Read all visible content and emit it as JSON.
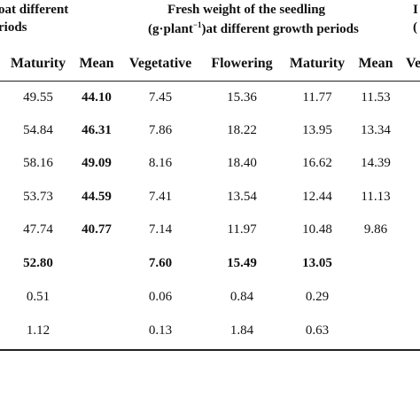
{
  "headers": {
    "group1_line1": "oat different",
    "group1_line2": "riods",
    "group2_line1": "Fresh weight of the seedling",
    "group2_line2_pre": "(g·plant",
    "group2_line2_sup": "−1",
    "group2_line2_post": ")at different growth periods",
    "group3_line1": "I",
    "group3_line2": "(",
    "columns": [
      "Maturity",
      "Mean",
      "Vegetative",
      "Flowering",
      "Maturity",
      "Mean",
      "Ve"
    ]
  },
  "rows": [
    {
      "maturity1": "49.55",
      "mean1": "44.10",
      "vegetative": "7.45",
      "flowering": "15.36",
      "maturity2": "11.77",
      "mean2": "11.53"
    },
    {
      "maturity1": "54.84",
      "mean1": "46.31",
      "vegetative": "7.86",
      "flowering": "18.22",
      "maturity2": "13.95",
      "mean2": "13.34"
    },
    {
      "maturity1": "58.16",
      "mean1": "49.09",
      "vegetative": "8.16",
      "flowering": "18.40",
      "maturity2": "16.62",
      "mean2": "14.39"
    },
    {
      "maturity1": "53.73",
      "mean1": "44.59",
      "vegetative": "7.41",
      "flowering": "13.54",
      "maturity2": "12.44",
      "mean2": "11.13"
    },
    {
      "maturity1": "47.74",
      "mean1": "40.77",
      "vegetative": "7.14",
      "flowering": "11.97",
      "maturity2": "10.48",
      "mean2": "9.86"
    },
    {
      "maturity1": "52.80",
      "mean1": "",
      "vegetative": "7.60",
      "flowering": "15.49",
      "maturity2": "13.05",
      "mean2": ""
    },
    {
      "maturity1": "0.51",
      "mean1": "",
      "vegetative": "0.06",
      "flowering": "0.84",
      "maturity2": "0.29",
      "mean2": ""
    },
    {
      "maturity1": "1.12",
      "mean1": "",
      "vegetative": "0.13",
      "flowering": "1.84",
      "maturity2": "0.63",
      "mean2": ""
    }
  ]
}
